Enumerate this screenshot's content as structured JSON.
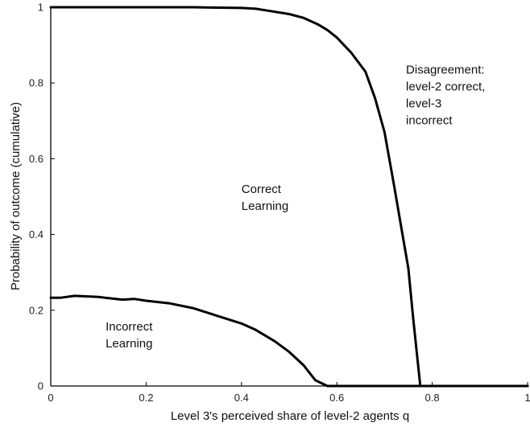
{
  "chart_data": {
    "type": "line",
    "xlabel": "Level 3's perceived share of level-2 agents q",
    "ylabel": "Probability of outcome (cumulative)",
    "xlim": [
      0,
      1
    ],
    "ylim": [
      0,
      1
    ],
    "x_ticks": [
      0,
      0.2,
      0.4,
      0.6,
      0.8,
      1
    ],
    "x_tick_labels": [
      "0",
      "0.2",
      "0.4",
      "0.6",
      "0.8",
      "1"
    ],
    "y_ticks": [
      0,
      0.2,
      0.4,
      0.6,
      0.8,
      1
    ],
    "y_tick_labels": [
      "0",
      "0.2",
      "0.4",
      "0.6",
      "0.8",
      "1"
    ],
    "grid": false,
    "series": [
      {
        "x": [
          0,
          0.02,
          0.05,
          0.1,
          0.15,
          0.175,
          0.2,
          0.25,
          0.3,
          0.35,
          0.4,
          0.43,
          0.47,
          0.5,
          0.53,
          0.555,
          0.58,
          0.6,
          1.0
        ],
        "y": [
          0.233,
          0.233,
          0.238,
          0.235,
          0.228,
          0.23,
          0.225,
          0.218,
          0.205,
          0.185,
          0.165,
          0.148,
          0.118,
          0.09,
          0.055,
          0.015,
          0.0,
          0.0,
          0.0
        ]
      },
      {
        "x": [
          0,
          0.2,
          0.3,
          0.4,
          0.43,
          0.46,
          0.5,
          0.53,
          0.56,
          0.58,
          0.6,
          0.63,
          0.66,
          0.68,
          0.7,
          0.72,
          0.735,
          0.75,
          0.76,
          0.775,
          0.8,
          1.0
        ],
        "y": [
          1.0,
          1.0,
          1.0,
          0.998,
          0.996,
          0.99,
          0.982,
          0.972,
          0.955,
          0.94,
          0.92,
          0.88,
          0.83,
          0.76,
          0.67,
          0.53,
          0.42,
          0.31,
          0.18,
          0.0,
          0.0,
          0.0
        ]
      }
    ],
    "annotations": [
      {
        "lines": [
          "Disagreement:",
          "level-2 correct,",
          "level-3",
          "incorrect"
        ],
        "x": 0.745,
        "y": 0.825
      },
      {
        "lines": [
          "Correct",
          "Learning"
        ],
        "x": 0.4,
        "y": 0.51
      },
      {
        "lines": [
          "Incorrect",
          "Learning"
        ],
        "x": 0.115,
        "y": 0.147
      }
    ]
  }
}
